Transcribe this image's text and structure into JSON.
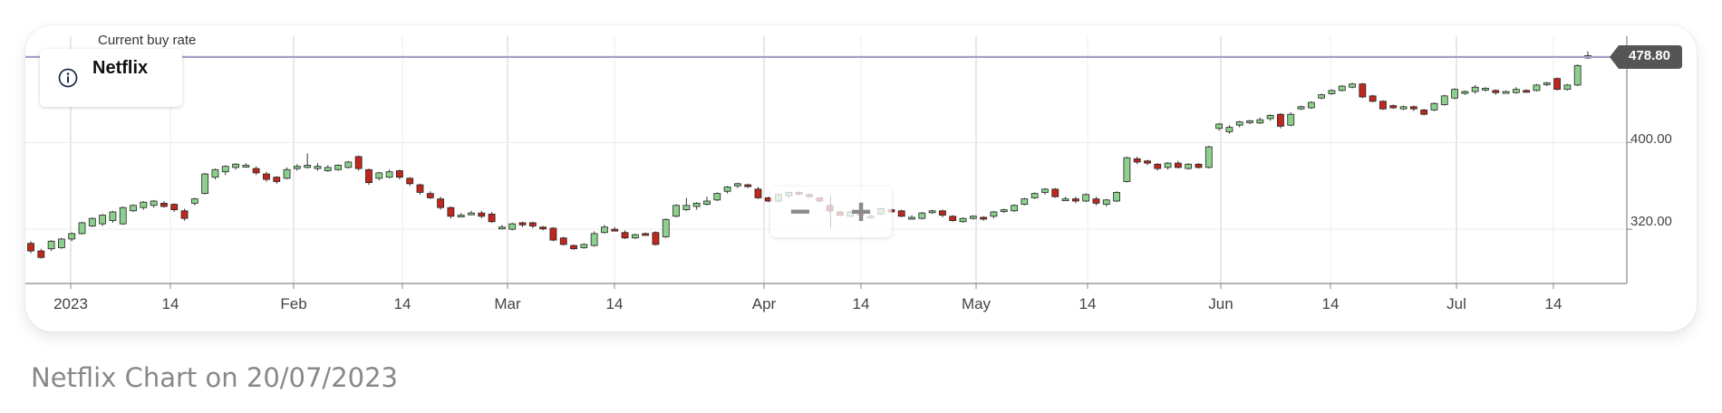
{
  "chart_data": {
    "type": "candlestick",
    "title": "Netflix",
    "current_rate_label": "Current buy rate",
    "current_rate": 478.8,
    "current_rate_text": "478.80",
    "y_ticks": [
      "400.00",
      "320.00"
    ],
    "x_ticks": [
      "2023",
      "14",
      "Feb",
      "14",
      "Mar",
      "14",
      "Apr",
      "14",
      "May",
      "14",
      "Jun",
      "14",
      "Jul",
      "14"
    ],
    "ylim": [
      270,
      498
    ],
    "grid": true,
    "colors": {
      "up": "#8dd08d",
      "down": "#c0281e",
      "wick": "#333333",
      "rate_line": "#a79cc8",
      "badge": "#555555"
    },
    "candles": [
      [
        307,
        300,
        309,
        298
      ],
      [
        300,
        294,
        302,
        293
      ],
      [
        302,
        309,
        310,
        300
      ],
      [
        303,
        311,
        312,
        302
      ],
      [
        311,
        316,
        317,
        309
      ],
      [
        316,
        326,
        327,
        315
      ],
      [
        323,
        330,
        331,
        322
      ],
      [
        325,
        333,
        334,
        323
      ],
      [
        328,
        336,
        337,
        326
      ],
      [
        325,
        340,
        341,
        324
      ],
      [
        337,
        342,
        343,
        336
      ],
      [
        340,
        345,
        346,
        338
      ],
      [
        342,
        346,
        347,
        340
      ],
      [
        344,
        341,
        346,
        340
      ],
      [
        343,
        338,
        344,
        336
      ],
      [
        337,
        330,
        339,
        328
      ],
      [
        344,
        348,
        349,
        342
      ],
      [
        353,
        371,
        372,
        352
      ],
      [
        368,
        375,
        376,
        366
      ],
      [
        373,
        378,
        379,
        370
      ],
      [
        377,
        380,
        381,
        375
      ],
      [
        379,
        379,
        381,
        377
      ],
      [
        376,
        372,
        378,
        370
      ],
      [
        371,
        366,
        373,
        364
      ],
      [
        368,
        364,
        369,
        362
      ],
      [
        367,
        375,
        377,
        366
      ],
      [
        376,
        378,
        380,
        374
      ],
      [
        377,
        379,
        390,
        376
      ],
      [
        376,
        378,
        381,
        374
      ],
      [
        374,
        377,
        379,
        373
      ],
      [
        375,
        379,
        380,
        374
      ],
      [
        377,
        382,
        383,
        376
      ],
      [
        387,
        376,
        388,
        374
      ],
      [
        375,
        363,
        376,
        361
      ],
      [
        367,
        372,
        373,
        365
      ],
      [
        368,
        373,
        375,
        367
      ],
      [
        374,
        368,
        375,
        366
      ],
      [
        367,
        362,
        368,
        360
      ],
      [
        361,
        354,
        362,
        352
      ],
      [
        353,
        349,
        355,
        348
      ],
      [
        348,
        340,
        350,
        338
      ],
      [
        340,
        332,
        341,
        330
      ],
      [
        332,
        333,
        335,
        331
      ],
      [
        334,
        335,
        337,
        333
      ],
      [
        335,
        332,
        337,
        330
      ],
      [
        334,
        327,
        336,
        326
      ],
      [
        322,
        322,
        324,
        320
      ],
      [
        320,
        325,
        326,
        319
      ],
      [
        326,
        324,
        327,
        322
      ],
      [
        326,
        323,
        327,
        321
      ],
      [
        322,
        321,
        323,
        319
      ],
      [
        321,
        310,
        322,
        309
      ],
      [
        312,
        306,
        313,
        305
      ],
      [
        305,
        302,
        306,
        301
      ],
      [
        303,
        306,
        307,
        302
      ],
      [
        305,
        316,
        318,
        304
      ],
      [
        317,
        322,
        324,
        316
      ],
      [
        320,
        319,
        322,
        318
      ],
      [
        317,
        312,
        319,
        311
      ],
      [
        312,
        315,
        316,
        311
      ],
      [
        316,
        315,
        317,
        314
      ],
      [
        317,
        306,
        318,
        305
      ],
      [
        313,
        329,
        330,
        312
      ],
      [
        332,
        342,
        343,
        331
      ],
      [
        338,
        342,
        349,
        337
      ],
      [
        341,
        344,
        345,
        338
      ],
      [
        343,
        346,
        350,
        342
      ],
      [
        347,
        353,
        354,
        346
      ],
      [
        355,
        359,
        360,
        353
      ],
      [
        360,
        362,
        363,
        358
      ],
      [
        361,
        360,
        362,
        358
      ],
      [
        357,
        349,
        359,
        348
      ],
      [
        349,
        346,
        350,
        345
      ],
      [
        346,
        352,
        353,
        345
      ],
      [
        351,
        354,
        355,
        349
      ],
      [
        354,
        353,
        355,
        351
      ],
      [
        352,
        350,
        353,
        349
      ],
      [
        349,
        346,
        350,
        345
      ],
      [
        342,
        337,
        343,
        335
      ],
      [
        336,
        333,
        337,
        332
      ],
      [
        332,
        336,
        337,
        331
      ],
      [
        335,
        333,
        336,
        332
      ],
      [
        332,
        332,
        334,
        330
      ],
      [
        334,
        339,
        340,
        333
      ],
      [
        338,
        336,
        340,
        335
      ],
      [
        337,
        332,
        338,
        331
      ],
      [
        331,
        331,
        333,
        329
      ],
      [
        330,
        335,
        336,
        329
      ],
      [
        336,
        337,
        338,
        334
      ],
      [
        337,
        333,
        338,
        331
      ],
      [
        332,
        328,
        333,
        327
      ],
      [
        327,
        330,
        331,
        326
      ],
      [
        330,
        332,
        333,
        329
      ],
      [
        331,
        330,
        332,
        328
      ],
      [
        332,
        336,
        337,
        330
      ],
      [
        337,
        338,
        339,
        335
      ],
      [
        337,
        342,
        343,
        336
      ],
      [
        343,
        348,
        349,
        342
      ],
      [
        349,
        353,
        354,
        348
      ],
      [
        354,
        357,
        358,
        352
      ],
      [
        357,
        350,
        358,
        349
      ],
      [
        348,
        348,
        350,
        346
      ],
      [
        348,
        346,
        350,
        344
      ],
      [
        346,
        352,
        353,
        345
      ],
      [
        348,
        344,
        350,
        342
      ],
      [
        343,
        347,
        348,
        341
      ],
      [
        346,
        354,
        355,
        345
      ],
      [
        364,
        386,
        387,
        363
      ],
      [
        385,
        382,
        387,
        380
      ],
      [
        383,
        381,
        384,
        379
      ],
      [
        380,
        376,
        381,
        374
      ],
      [
        377,
        381,
        382,
        375
      ],
      [
        381,
        377,
        383,
        376
      ],
      [
        376,
        380,
        381,
        375
      ],
      [
        380,
        377,
        381,
        376
      ],
      [
        377,
        396,
        397,
        376
      ],
      [
        413,
        417,
        418,
        411
      ],
      [
        410,
        414,
        416,
        408
      ],
      [
        416,
        419,
        420,
        414
      ],
      [
        419,
        420,
        421,
        417
      ],
      [
        418,
        421,
        423,
        417
      ],
      [
        422,
        425,
        426,
        420
      ],
      [
        426,
        415,
        427,
        413
      ],
      [
        416,
        426,
        428,
        415
      ],
      [
        431,
        433,
        434,
        430
      ],
      [
        432,
        437,
        438,
        431
      ],
      [
        441,
        444,
        445,
        440
      ],
      [
        445,
        448,
        449,
        444
      ],
      [
        448,
        452,
        453,
        447
      ],
      [
        451,
        454,
        455,
        450
      ],
      [
        454,
        442,
        455,
        441
      ],
      [
        443,
        438,
        444,
        437
      ],
      [
        438,
        431,
        439,
        430
      ],
      [
        434,
        432,
        435,
        431
      ],
      [
        431,
        433,
        434,
        430
      ],
      [
        433,
        431,
        434,
        429
      ],
      [
        430,
        426,
        431,
        425
      ],
      [
        430,
        436,
        437,
        429
      ],
      [
        435,
        443,
        444,
        434
      ],
      [
        441,
        449,
        450,
        440
      ],
      [
        446,
        447,
        448,
        444
      ],
      [
        447,
        451,
        453,
        445
      ],
      [
        449,
        450,
        451,
        447
      ],
      [
        448,
        446,
        449,
        444
      ],
      [
        447,
        447,
        448,
        445
      ],
      [
        446,
        449,
        451,
        445
      ],
      [
        448,
        447,
        449,
        446
      ],
      [
        448,
        453,
        454,
        447
      ],
      [
        454,
        455,
        456,
        452
      ],
      [
        459,
        449,
        460,
        448
      ],
      [
        449,
        453,
        454,
        448
      ],
      [
        453,
        471,
        472,
        452
      ],
      [
        480,
        478,
        484,
        477
      ]
    ]
  },
  "caption": "Netflix Chart on 20/07/2023"
}
